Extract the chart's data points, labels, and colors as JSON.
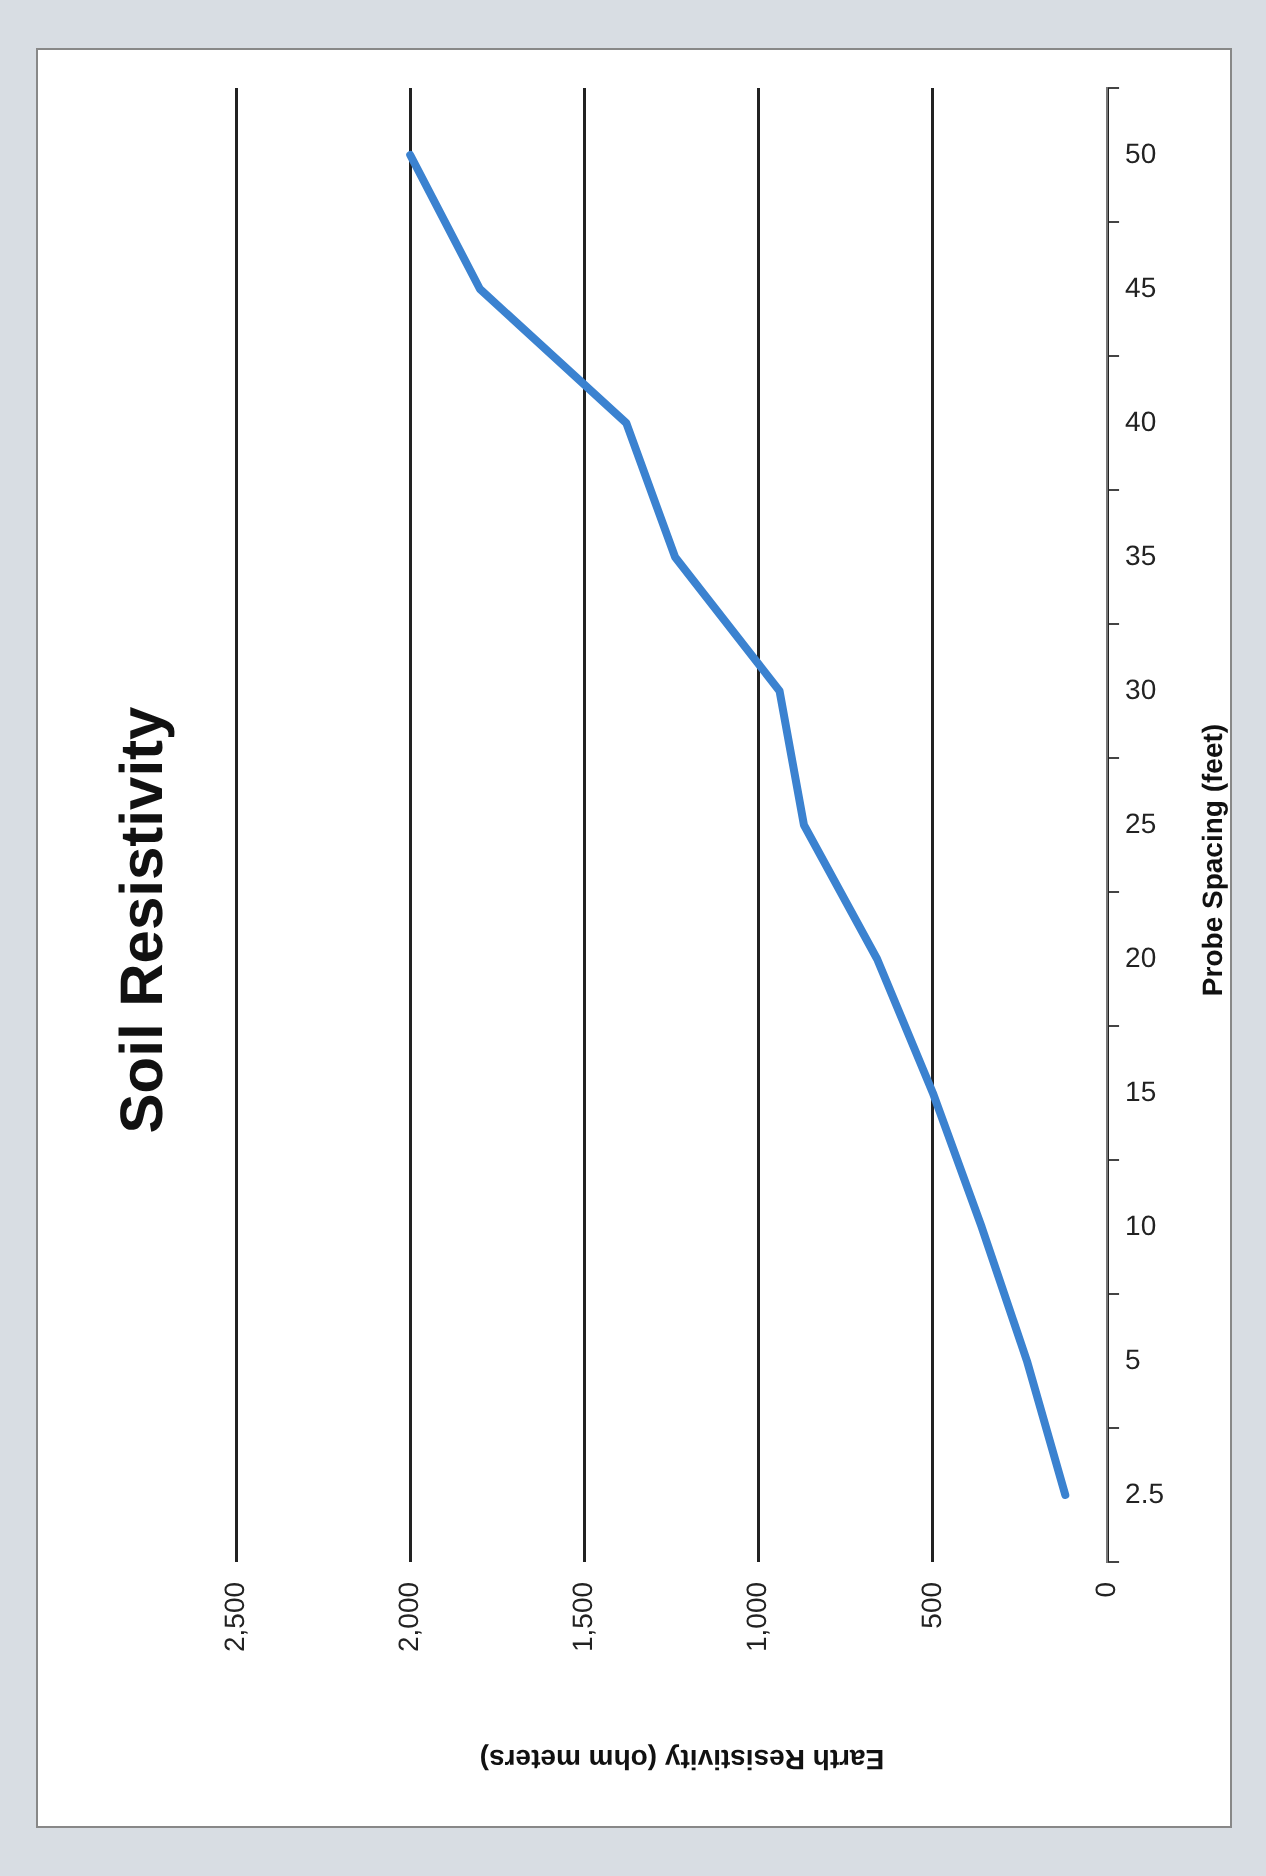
{
  "chart_data": {
    "type": "line",
    "orientation": "horizontal",
    "title": "Soil Resistivity",
    "xlabel": "Earth Resistivity (ohm meters)",
    "ylabel": "Probe Spacing (feet)",
    "categories": [
      "50",
      "45",
      "40",
      "35",
      "30",
      "25",
      "20",
      "15",
      "10",
      "5",
      "2.5"
    ],
    "series": [
      {
        "color": "#3b82d0",
        "values": [
          2000,
          1800,
          1380,
          1240,
          940,
          870,
          660,
          500,
          360,
          230,
          120
        ]
      }
    ],
    "xlim": [
      2500,
      0
    ],
    "xticks": [
      {
        "value": 2500,
        "label": "2,500"
      },
      {
        "value": 2000,
        "label": "2,000"
      },
      {
        "value": 1500,
        "label": "1,500"
      },
      {
        "value": 1000,
        "label": "1,000"
      },
      500,
      0
    ],
    "grid": "x",
    "legend": false,
    "marker": "none",
    "line_style": "solid"
  }
}
